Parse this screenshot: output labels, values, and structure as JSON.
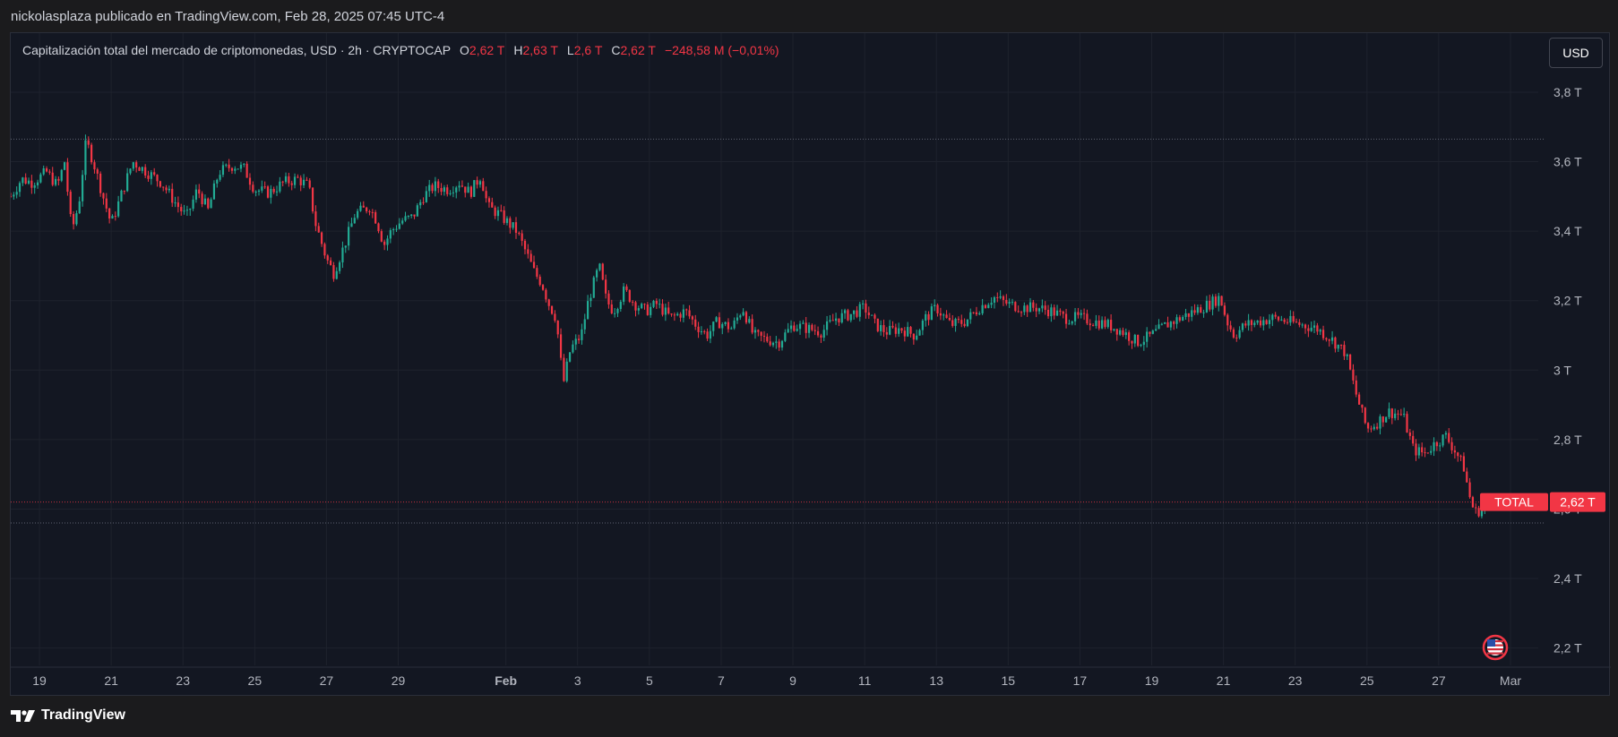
{
  "caption": "nickolasplaza publicado en TradingView.com, Feb 28, 2025 07:45 UTC-4",
  "legend": {
    "title": "Capitalización total del mercado de criptomonedas, USD · 2h · CRYPTOCAP",
    "open_label": "O",
    "open_value": "2,62 T",
    "high_label": "H",
    "high_value": "2,63 T",
    "low_label": "L",
    "low_value": "2,6 T",
    "close_label": "C",
    "close_value": "2,62 T",
    "change": "−248,58 M (−0,01%)"
  },
  "currency_button": "USD",
  "footer": {
    "brand": "TradingView"
  },
  "colors": {
    "up": "#22ab94",
    "down": "#f23645",
    "background": "#131722",
    "grid": "#1e222d",
    "axis_text": "#b2b5be"
  },
  "chart_data": {
    "type": "candlestick",
    "series_name": "TOTAL",
    "last_value": "2,62 T",
    "y_unit": "T",
    "ylim": [
      2.15,
      3.97
    ],
    "y_ticks": [
      {
        "value": 2.2,
        "label": "2,2 T"
      },
      {
        "value": 2.4,
        "label": "2,4 T"
      },
      {
        "value": 2.6,
        "label": "2,6 T"
      },
      {
        "value": 2.8,
        "label": "2,8 T"
      },
      {
        "value": 3.0,
        "label": "3 T"
      },
      {
        "value": 3.2,
        "label": "3,2 T"
      },
      {
        "value": 3.4,
        "label": "3,4 T"
      },
      {
        "value": 3.6,
        "label": "3,6 T"
      },
      {
        "value": 3.8,
        "label": "3,8 T"
      }
    ],
    "x_ticks": [
      {
        "day": 19,
        "label": "19"
      },
      {
        "day": 21,
        "label": "21"
      },
      {
        "day": 23,
        "label": "23"
      },
      {
        "day": 25,
        "label": "25"
      },
      {
        "day": 27,
        "label": "27"
      },
      {
        "day": 29,
        "label": "29"
      },
      {
        "day": 32,
        "label": "Feb"
      },
      {
        "day": 34,
        "label": "3"
      },
      {
        "day": 36,
        "label": "5"
      },
      {
        "day": 38,
        "label": "7"
      },
      {
        "day": 40,
        "label": "9"
      },
      {
        "day": 42,
        "label": "11"
      },
      {
        "day": 44,
        "label": "13"
      },
      {
        "day": 46,
        "label": "15"
      },
      {
        "day": 48,
        "label": "17"
      },
      {
        "day": 50,
        "label": "19"
      },
      {
        "day": 52,
        "label": "21"
      },
      {
        "day": 54,
        "label": "23"
      },
      {
        "day": 56,
        "label": "25"
      },
      {
        "day": 58,
        "label": "27"
      },
      {
        "day": 60,
        "label": "Mar"
      }
    ],
    "xlim_days": [
      18.2,
      60.6
    ],
    "reference_lines": [
      3.665,
      2.56
    ],
    "price_path": [
      [
        18.2,
        3.5
      ],
      [
        18.5,
        3.55
      ],
      [
        18.8,
        3.54
      ],
      [
        19.2,
        3.57
      ],
      [
        19.5,
        3.53
      ],
      [
        19.7,
        3.6
      ],
      [
        19.9,
        3.4
      ],
      [
        20.1,
        3.48
      ],
      [
        20.3,
        3.66
      ],
      [
        20.5,
        3.6
      ],
      [
        20.8,
        3.49
      ],
      [
        21.0,
        3.42
      ],
      [
        21.3,
        3.51
      ],
      [
        21.6,
        3.6
      ],
      [
        22.0,
        3.57
      ],
      [
        22.4,
        3.54
      ],
      [
        22.8,
        3.48
      ],
      [
        23.1,
        3.44
      ],
      [
        23.4,
        3.52
      ],
      [
        23.7,
        3.46
      ],
      [
        24.0,
        3.57
      ],
      [
        24.4,
        3.59
      ],
      [
        24.7,
        3.58
      ],
      [
        25.0,
        3.52
      ],
      [
        25.4,
        3.51
      ],
      [
        25.8,
        3.54
      ],
      [
        26.2,
        3.55
      ],
      [
        26.5,
        3.53
      ],
      [
        26.7,
        3.42
      ],
      [
        27.0,
        3.32
      ],
      [
        27.2,
        3.28
      ],
      [
        27.5,
        3.36
      ],
      [
        27.8,
        3.45
      ],
      [
        28.2,
        3.47
      ],
      [
        28.4,
        3.43
      ],
      [
        28.6,
        3.36
      ],
      [
        28.8,
        3.4
      ],
      [
        29.1,
        3.43
      ],
      [
        29.4,
        3.44
      ],
      [
        29.7,
        3.5
      ],
      [
        30.0,
        3.53
      ],
      [
        30.4,
        3.52
      ],
      [
        30.7,
        3.54
      ],
      [
        31.0,
        3.51
      ],
      [
        31.3,
        3.56
      ],
      [
        31.5,
        3.47
      ],
      [
        31.8,
        3.45
      ],
      [
        32.0,
        3.43
      ],
      [
        32.3,
        3.4
      ],
      [
        32.6,
        3.33
      ],
      [
        32.8,
        3.28
      ],
      [
        33.0,
        3.25
      ],
      [
        33.2,
        3.19
      ],
      [
        33.4,
        3.15
      ],
      [
        33.6,
        2.96
      ],
      [
        33.8,
        3.06
      ],
      [
        34.1,
        3.1
      ],
      [
        34.3,
        3.2
      ],
      [
        34.6,
        3.3
      ],
      [
        34.8,
        3.2
      ],
      [
        35.0,
        3.17
      ],
      [
        35.3,
        3.23
      ],
      [
        35.6,
        3.19
      ],
      [
        35.9,
        3.17
      ],
      [
        36.2,
        3.19
      ],
      [
        36.6,
        3.15
      ],
      [
        37.0,
        3.17
      ],
      [
        37.3,
        3.13
      ],
      [
        37.6,
        3.1
      ],
      [
        37.9,
        3.14
      ],
      [
        38.3,
        3.12
      ],
      [
        38.6,
        3.18
      ],
      [
        38.9,
        3.1
      ],
      [
        39.2,
        3.09
      ],
      [
        39.6,
        3.08
      ],
      [
        40.0,
        3.13
      ],
      [
        40.4,
        3.12
      ],
      [
        40.8,
        3.11
      ],
      [
        41.2,
        3.15
      ],
      [
        41.6,
        3.16
      ],
      [
        42.0,
        3.18
      ],
      [
        42.3,
        3.13
      ],
      [
        42.6,
        3.11
      ],
      [
        43.0,
        3.12
      ],
      [
        43.4,
        3.1
      ],
      [
        43.7,
        3.15
      ],
      [
        44.0,
        3.18
      ],
      [
        44.4,
        3.13
      ],
      [
        44.8,
        3.14
      ],
      [
        45.2,
        3.18
      ],
      [
        45.6,
        3.21
      ],
      [
        46.0,
        3.19
      ],
      [
        46.4,
        3.18
      ],
      [
        46.8,
        3.18
      ],
      [
        47.2,
        3.17
      ],
      [
        47.6,
        3.15
      ],
      [
        48.0,
        3.15
      ],
      [
        48.4,
        3.14
      ],
      [
        48.8,
        3.13
      ],
      [
        49.2,
        3.11
      ],
      [
        49.6,
        3.08
      ],
      [
        50.0,
        3.1
      ],
      [
        50.4,
        3.13
      ],
      [
        50.8,
        3.15
      ],
      [
        51.2,
        3.17
      ],
      [
        51.6,
        3.19
      ],
      [
        51.9,
        3.21
      ],
      [
        52.1,
        3.14
      ],
      [
        52.3,
        3.1
      ],
      [
        52.6,
        3.13
      ],
      [
        53.0,
        3.14
      ],
      [
        53.4,
        3.15
      ],
      [
        53.8,
        3.14
      ],
      [
        54.2,
        3.13
      ],
      [
        54.6,
        3.12
      ],
      [
        55.0,
        3.09
      ],
      [
        55.4,
        3.05
      ],
      [
        55.7,
        2.93
      ],
      [
        56.0,
        2.83
      ],
      [
        56.3,
        2.85
      ],
      [
        56.6,
        2.88
      ],
      [
        57.0,
        2.87
      ],
      [
        57.3,
        2.77
      ],
      [
        57.6,
        2.76
      ],
      [
        57.9,
        2.79
      ],
      [
        58.2,
        2.81
      ],
      [
        58.5,
        2.76
      ],
      [
        58.7,
        2.72
      ],
      [
        58.85,
        2.64
      ],
      [
        59.0,
        2.59
      ],
      [
        59.2,
        2.6
      ],
      [
        59.4,
        2.62
      ]
    ]
  }
}
